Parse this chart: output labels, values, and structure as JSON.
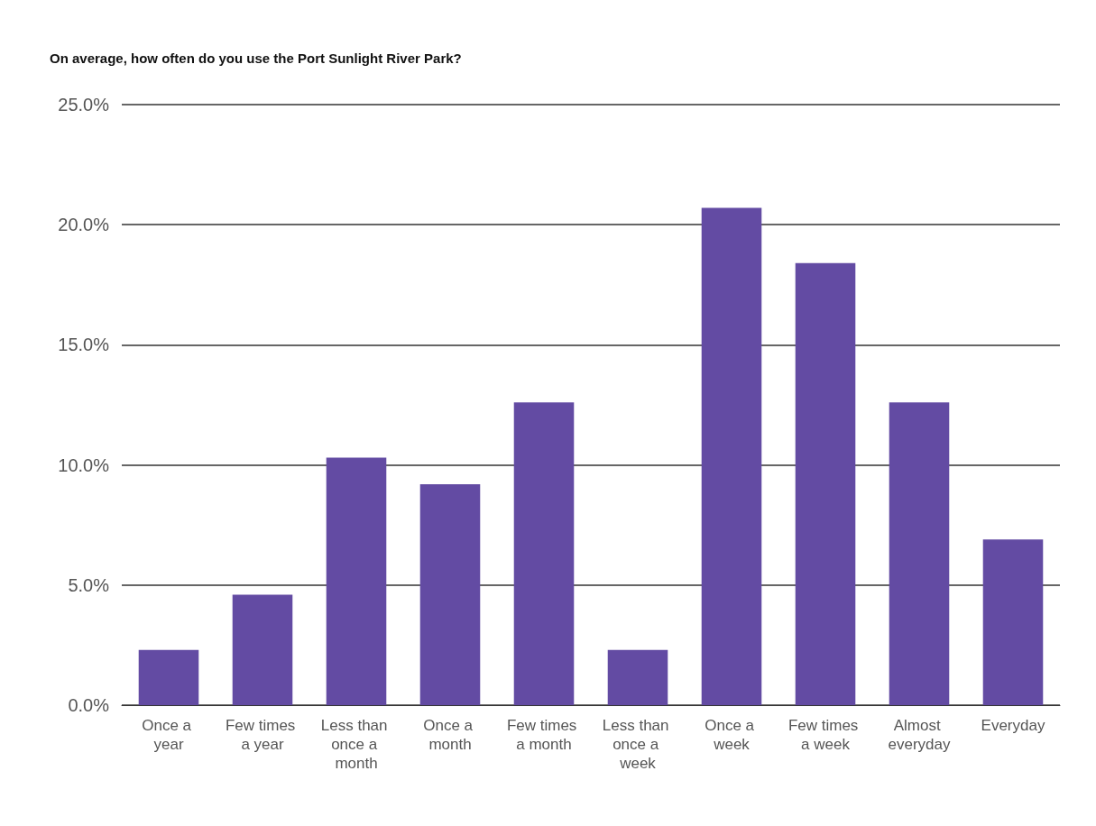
{
  "chart_data": {
    "type": "bar",
    "title": "On average, how often do you use the Port Sunlight River Park?",
    "categories": [
      "Once a year",
      "Few times a year",
      "Less than once a month",
      "Once a month",
      "Few times a month",
      "Less than once a week",
      "Once a week",
      "Few times a week",
      "Almost everyday",
      "Everyday"
    ],
    "values": [
      2.3,
      4.6,
      10.3,
      9.2,
      12.6,
      2.3,
      20.7,
      18.4,
      12.6,
      6.9
    ],
    "color": "#634ba3",
    "ylim": [
      0,
      25
    ],
    "yticks": [
      {
        "value": 0,
        "label": "0.0%"
      },
      {
        "value": 5,
        "label": "5.0%"
      },
      {
        "value": 10,
        "label": "10.0%"
      },
      {
        "value": 15,
        "label": "15.0%"
      },
      {
        "value": 20,
        "label": "20.0%"
      },
      {
        "value": 25,
        "label": "25.0%"
      }
    ],
    "grid": "y"
  }
}
